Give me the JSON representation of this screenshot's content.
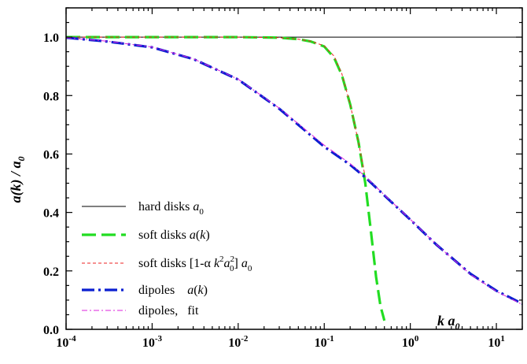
{
  "chart_data": {
    "type": "line",
    "ylabel": "a(k) / a0",
    "xlabel": "k a0",
    "x_scale": "log",
    "xlim": [
      0.0001,
      20
    ],
    "ylim": [
      0.0,
      1.1
    ],
    "x_ticks": [
      {
        "base": "10",
        "exp": "-4",
        "value": 0.0001
      },
      {
        "base": "10",
        "exp": "-3",
        "value": 0.001
      },
      {
        "base": "10",
        "exp": "-2",
        "value": 0.01
      },
      {
        "base": "10",
        "exp": "-1",
        "value": 0.1
      },
      {
        "base": "10",
        "exp": "0",
        "value": 1
      },
      {
        "base": "10",
        "exp": "1",
        "value": 10
      }
    ],
    "y_ticks": [
      "0.0",
      "0.2",
      "0.4",
      "0.6",
      "0.8",
      "1.0"
    ],
    "grid": false,
    "legend_position": "bottom-left",
    "series": [
      {
        "name": "hard disks a0",
        "color": "#000000",
        "style": "solid-thin",
        "x": [
          0.0001,
          20
        ],
        "y": [
          1.0,
          1.0
        ]
      },
      {
        "name": "soft disks a(k)",
        "color": "#22dd22",
        "style": "dashed-thick",
        "x": [
          0.0001,
          0.001,
          0.01,
          0.03,
          0.05,
          0.07,
          0.1,
          0.13,
          0.16,
          0.2,
          0.25,
          0.3,
          0.35,
          0.4,
          0.45,
          0.5
        ],
        "y": [
          1.0,
          1.0,
          1.0,
          0.998,
          0.993,
          0.985,
          0.968,
          0.93,
          0.87,
          0.77,
          0.64,
          0.5,
          0.33,
          0.18,
          0.08,
          0.03
        ]
      },
      {
        "name": "soft disks [1-α k2a02] a0",
        "color": "#ee2222",
        "style": "dashed-thin",
        "x": [
          0.0001,
          0.001,
          0.01,
          0.03,
          0.05,
          0.07,
          0.1,
          0.13,
          0.16,
          0.2,
          0.25,
          0.3
        ],
        "y": [
          1.0,
          1.0,
          1.0,
          0.998,
          0.993,
          0.986,
          0.97,
          0.935,
          0.875,
          0.77,
          0.64,
          0.52
        ]
      },
      {
        "name": "dipoles a(k)",
        "color": "#0a1fd0",
        "style": "dashdot-thick",
        "x": [
          0.0001,
          0.0003,
          0.001,
          0.003,
          0.01,
          0.03,
          0.1,
          0.2,
          0.3,
          0.5,
          1,
          2,
          5,
          10,
          20
        ],
        "y": [
          0.998,
          0.985,
          0.965,
          0.925,
          0.855,
          0.755,
          0.625,
          0.563,
          0.52,
          0.458,
          0.375,
          0.29,
          0.19,
          0.132,
          0.088
        ]
      },
      {
        "name": "dipoles, fit",
        "color": "#dd22dd",
        "style": "dashdot-thin",
        "x": [
          0.0001,
          0.0003,
          0.001,
          0.003,
          0.01,
          0.03,
          0.1,
          0.2,
          0.3,
          0.5,
          1,
          2,
          5,
          10,
          20
        ],
        "y": [
          0.998,
          0.986,
          0.966,
          0.926,
          0.856,
          0.757,
          0.63,
          0.567,
          0.523,
          0.46,
          0.376,
          0.291,
          0.188,
          0.13,
          0.085
        ]
      }
    ]
  }
}
